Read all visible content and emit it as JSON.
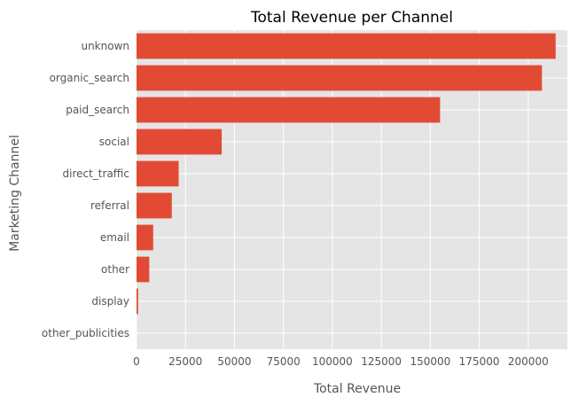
{
  "chart_data": {
    "type": "bar",
    "orientation": "horizontal",
    "title": "Total Revenue per Channel",
    "xlabel": "Total Revenue",
    "ylabel": "Marketing Channel",
    "categories": [
      "unknown",
      "organic_search",
      "paid_search",
      "social",
      "direct_traffic",
      "referral",
      "email",
      "other",
      "display",
      "other_publicities"
    ],
    "values": [
      214000,
      207000,
      155000,
      43500,
      21500,
      18000,
      8500,
      6500,
      800,
      0
    ],
    "xlim": [
      0,
      220000
    ],
    "xticks": [
      0,
      25000,
      50000,
      75000,
      100000,
      125000,
      150000,
      175000,
      200000
    ],
    "xtick_labels": [
      "0",
      "25000",
      "50000",
      "75000",
      "100000",
      "125000",
      "150000",
      "175000",
      "200000"
    ],
    "grid": true,
    "colors": {
      "bar": "#E24A33",
      "plot_background": "#E5E5E5",
      "grid": "#FFFFFF",
      "text": "#555555"
    }
  }
}
